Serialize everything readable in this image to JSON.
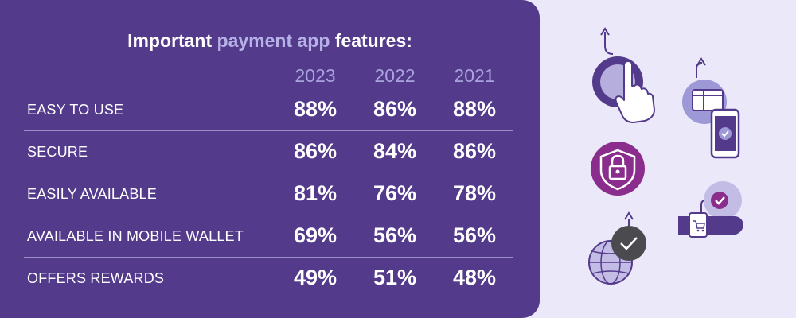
{
  "chart_data": {
    "type": "table",
    "title_parts": {
      "before": "Important ",
      "accent": "payment app",
      "after": " features:"
    },
    "columns": [
      "2023",
      "2022",
      "2021"
    ],
    "rows": [
      {
        "label": "EASY TO USE",
        "values": [
          "88%",
          "86%",
          "88%"
        ]
      },
      {
        "label": "SECURE",
        "values": [
          "86%",
          "84%",
          "86%"
        ]
      },
      {
        "label": "EASILY AVAILABLE",
        "values": [
          "81%",
          "76%",
          "78%"
        ]
      },
      {
        "label": "AVAILABLE IN MOBILE WALLET",
        "values": [
          "69%",
          "56%",
          "56%"
        ]
      },
      {
        "label": "OFFERS REWARDS",
        "values": [
          "49%",
          "51%",
          "48%"
        ]
      }
    ]
  },
  "colors": {
    "panel": "#533a8b",
    "accent_text": "#b6b1e6",
    "background": "#ebe8fa",
    "magenta": "#8a2d8c"
  },
  "illustrations": [
    "tap-finger-icon",
    "gift-card-phone-icon",
    "security-lock-shield-icon",
    "smartwatch-cart-icon",
    "globe-checkmark-icon"
  ]
}
